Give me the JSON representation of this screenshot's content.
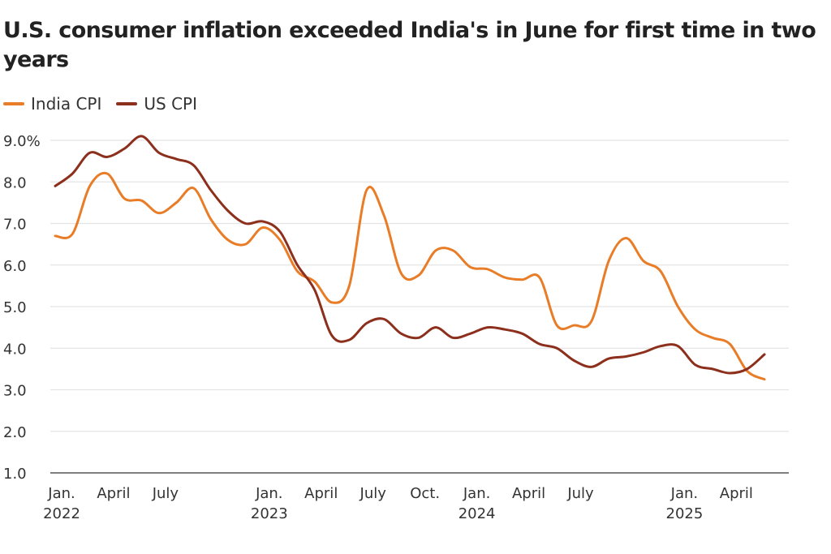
{
  "chart_data": {
    "type": "line",
    "title": "U.S. consumer inflation exceeded India's in June for first time in two years",
    "xlabel": "",
    "ylabel": "",
    "ylim": [
      1.0,
      9.0
    ],
    "yticks": [
      "1.0",
      "2.0",
      "3.0",
      "4.0",
      "5.0",
      "6.0",
      "7.0",
      "8.0",
      "9.0%"
    ],
    "ytick_values": [
      1,
      2,
      3,
      4,
      5,
      6,
      7,
      8,
      9
    ],
    "grid": true,
    "legend_position": "top-left",
    "x": [
      "2022-01",
      "2022-02",
      "2022-03",
      "2022-04",
      "2022-05",
      "2022-06",
      "2022-07",
      "2022-08",
      "2022-09",
      "2022-10",
      "2022-11",
      "2022-12",
      "2023-01",
      "2023-02",
      "2023-03",
      "2023-04",
      "2023-05",
      "2023-06",
      "2023-07",
      "2023-08",
      "2023-09",
      "2023-10",
      "2023-11",
      "2023-12",
      "2024-01",
      "2024-02",
      "2024-03",
      "2024-04",
      "2024-05",
      "2024-06",
      "2024-07",
      "2024-08",
      "2024-09",
      "2024-10",
      "2024-11",
      "2024-12",
      "2025-01",
      "2025-02",
      "2025-03",
      "2025-04",
      "2025-05",
      "2025-06"
    ],
    "xticks": [
      {
        "month": "2022-01",
        "line1": "Jan.",
        "line2": "2022"
      },
      {
        "month": "2022-04",
        "line1": "April",
        "line2": ""
      },
      {
        "month": "2022-07",
        "line1": "July",
        "line2": ""
      },
      {
        "month": "2023-01",
        "line1": "Jan.",
        "line2": "2023"
      },
      {
        "month": "2023-04",
        "line1": "April",
        "line2": ""
      },
      {
        "month": "2023-07",
        "line1": "July",
        "line2": ""
      },
      {
        "month": "2023-10",
        "line1": "Oct.",
        "line2": ""
      },
      {
        "month": "2024-01",
        "line1": "Jan.",
        "line2": "2024"
      },
      {
        "month": "2024-04",
        "line1": "April",
        "line2": ""
      },
      {
        "month": "2024-07",
        "line1": "July",
        "line2": ""
      },
      {
        "month": "2025-01",
        "line1": "Jan.",
        "line2": "2025"
      },
      {
        "month": "2025-04",
        "line1": "April",
        "line2": ""
      }
    ],
    "series": [
      {
        "name": "India CPI",
        "color": "#e97c26",
        "values": [
          6.7,
          6.75,
          7.9,
          8.2,
          7.6,
          7.55,
          7.25,
          7.5,
          7.85,
          7.1,
          6.6,
          6.5,
          6.9,
          6.6,
          5.85,
          5.6,
          5.1,
          5.5,
          7.8,
          7.2,
          5.8,
          5.75,
          6.35,
          6.35,
          5.95,
          5.9,
          5.7,
          5.65,
          5.7,
          4.55,
          4.55,
          4.65,
          6.1,
          6.65,
          6.1,
          5.85,
          5.0,
          4.45,
          4.25,
          4.1,
          3.45,
          3.25
        ]
      },
      {
        "name": "US CPI",
        "color": "#8c2f1c",
        "values": [
          7.9,
          8.2,
          8.7,
          8.6,
          8.8,
          9.1,
          8.7,
          8.55,
          8.4,
          7.8,
          7.3,
          7.0,
          7.05,
          6.8,
          6.0,
          5.4,
          4.3,
          4.2,
          4.6,
          4.7,
          4.35,
          4.25,
          4.5,
          4.25,
          4.35,
          4.5,
          4.45,
          4.35,
          4.1,
          4.0,
          3.7,
          3.55,
          3.75,
          3.8,
          3.9,
          4.05,
          4.05,
          3.6,
          3.5,
          3.4,
          3.5,
          3.85
        ]
      }
    ]
  }
}
